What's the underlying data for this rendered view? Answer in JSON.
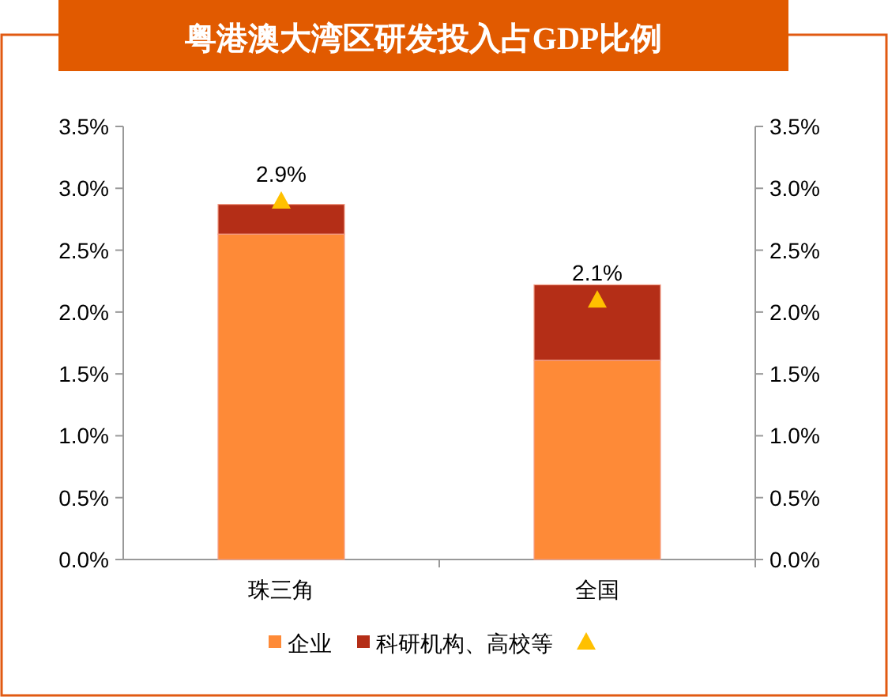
{
  "chart_data": {
    "type": "bar",
    "title": "粤港澳大湾区研发投入占GDP比例",
    "categories": [
      "珠三角",
      "全国"
    ],
    "stacked": true,
    "legend": "bottom",
    "grid": false,
    "series": [
      {
        "name": "企业",
        "color": "#fe8a37",
        "values": [
          2.63,
          1.61
        ]
      },
      {
        "name": "科研机构、高校等",
        "color": "#b42e17",
        "values": [
          0.24,
          0.61
        ]
      },
      {
        "type": "scatter",
        "marker": "triangle",
        "color": "#ffc000",
        "values": [
          2.9,
          2.1
        ],
        "value_labels": [
          "2.9%",
          "2.1%"
        ]
      }
    ],
    "ylim": [
      0,
      3.5
    ],
    "yticks": [
      {
        "value": 0,
        "label": "0.0%"
      },
      {
        "value": 0.5,
        "label": "0.5%"
      },
      {
        "value": 1,
        "label": "1.0%"
      },
      {
        "value": 1.5,
        "label": "1.5%"
      },
      {
        "value": 2,
        "label": "2.0%"
      },
      {
        "value": 2.5,
        "label": "2.5%"
      },
      {
        "value": 3,
        "label": "3.0%"
      },
      {
        "value": 3.5,
        "label": "3.5%"
      }
    ],
    "y2lim": [
      0,
      3.5
    ],
    "y2ticks": [
      {
        "value": 0,
        "label": "0.0%"
      },
      {
        "value": 0.5,
        "label": "0.5%"
      },
      {
        "value": 1,
        "label": "1.0%"
      },
      {
        "value": 1.5,
        "label": "1.5%"
      },
      {
        "value": 2,
        "label": "2.0%"
      },
      {
        "value": 2.5,
        "label": "2.5%"
      },
      {
        "value": 3,
        "label": "3.0%"
      },
      {
        "value": 3.5,
        "label": "3.5%"
      }
    ]
  }
}
